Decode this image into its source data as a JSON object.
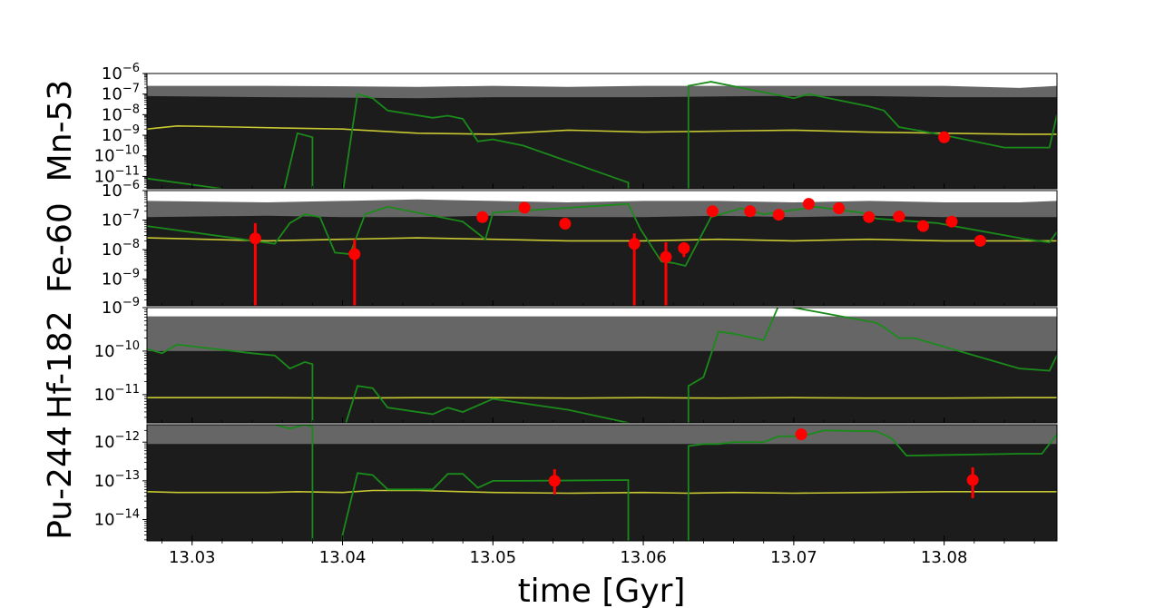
{
  "chart_data": {
    "type": "line",
    "xlabel": "time [Gyr]",
    "xlim": [
      13.027,
      13.0875
    ],
    "x_ticks": [
      "13.03",
      "13.04",
      "13.05",
      "13.06",
      "13.07",
      "13.08"
    ],
    "colors": {
      "band_outer": "#666666",
      "band_inner": "#1c1c1c",
      "median": "#c8c832",
      "model": "#1a8a1a",
      "measurement": "#ff0000"
    },
    "panels": [
      {
        "ylabel": "Mn-53",
        "log_ylim": [
          -11.6,
          -6
        ],
        "y_ticks": [
          -11,
          -10,
          -9,
          -8,
          -7,
          -6
        ],
        "band_outer": {
          "x": [
            13.027,
            13.035,
            13.045,
            13.05,
            13.055,
            13.06,
            13.0675,
            13.075,
            13.08,
            13.085,
            13.0875
          ],
          "lower": [
            -12,
            -12,
            -12,
            -12,
            -12,
            -12,
            -12,
            -12,
            -12,
            -12,
            -12
          ],
          "upper": [
            -6.6,
            -6.6,
            -6.65,
            -6.6,
            -6.65,
            -6.6,
            -6.6,
            -6.6,
            -6.6,
            -6.7,
            -6.6
          ]
        },
        "band_inner": {
          "x": [
            13.027,
            13.035,
            13.045,
            13.05,
            13.055,
            13.06,
            13.0675,
            13.075,
            13.08,
            13.085,
            13.0875
          ],
          "lower": [
            -12,
            -12,
            -12,
            -12,
            -12,
            -12,
            -12,
            -12,
            -12,
            -12,
            -12
          ],
          "upper": [
            -7.1,
            -7.15,
            -7.2,
            -7.15,
            -7.15,
            -7.15,
            -7.1,
            -7.1,
            -7.15,
            -7.15,
            -7.15
          ]
        },
        "median": {
          "x": [
            13.027,
            13.029,
            13.033,
            13.036,
            13.04,
            13.045,
            13.05,
            13.055,
            13.06,
            13.065,
            13.07,
            13.075,
            13.08,
            13.085,
            13.0875
          ],
          "y": [
            -8.7,
            -8.55,
            -8.6,
            -8.65,
            -8.7,
            -8.9,
            -8.95,
            -8.75,
            -8.85,
            -8.8,
            -8.75,
            -8.85,
            -8.9,
            -8.95,
            -8.95
          ]
        },
        "model": [
          {
            "x": [
              13.027,
              13.036,
              13.037,
              13.038,
              13.038
            ],
            "y": [
              -11.1,
              -12.0,
              -8.9,
              -9.1,
              -12.0
            ]
          },
          {
            "x": [
              13.04,
              13.041,
              13.042,
              13.043,
              13.046,
              13.047,
              13.048,
              13.049,
              13.05,
              13.052,
              13.059,
              13.059
            ],
            "y": [
              -11.9,
              -7.0,
              -7.2,
              -7.8,
              -8.15,
              -8.05,
              -8.2,
              -9.3,
              -9.2,
              -9.5,
              -11.3,
              -12.0
            ]
          },
          {
            "x": [
              13.063,
              13.063,
              13.0645,
              13.07,
              13.071,
              13.075,
              13.076,
              13.077,
              13.08,
              13.084,
              13.087,
              13.0875
            ],
            "y": [
              -12.0,
              -6.6,
              -6.4,
              -7.2,
              -7.0,
              -7.6,
              -7.8,
              -8.6,
              -9.0,
              -9.6,
              -9.6,
              -8.0
            ]
          }
        ],
        "measurements": [
          {
            "x": 13.08,
            "y": -9.1
          }
        ]
      },
      {
        "ylabel": "Fe-60",
        "log_ylim": [
          -9.9,
          -6
        ],
        "y_ticks": [
          -9,
          -8,
          -7,
          -6
        ],
        "band_outer": {
          "x": [
            13.027,
            13.035,
            13.04,
            13.045,
            13.05,
            13.055,
            13.06,
            13.065,
            13.07,
            13.075,
            13.08,
            13.085,
            13.0875
          ],
          "lower": [
            -10.1,
            -10.1,
            -10.0,
            -9.65,
            -9.8,
            -9.9,
            -10.1,
            -9.95,
            -9.9,
            -9.85,
            -9.9,
            -9.85,
            -9.9
          ],
          "upper": [
            -6.35,
            -6.4,
            -6.35,
            -6.3,
            -6.35,
            -6.4,
            -6.35,
            -6.35,
            -6.4,
            -6.35,
            -6.4,
            -6.4,
            -6.35
          ]
        },
        "band_inner": {
          "x": [
            13.027,
            13.035,
            13.04,
            13.045,
            13.05,
            13.055,
            13.06,
            13.065,
            13.07,
            13.075,
            13.08,
            13.085,
            13.0875
          ],
          "lower": [
            -10.1,
            -10.1,
            -10.1,
            -10.1,
            -10.1,
            -10.1,
            -10.1,
            -10.1,
            -10.1,
            -10.1,
            -10.1,
            -10.1,
            -10.1
          ],
          "upper": [
            -6.9,
            -6.85,
            -6.9,
            -6.9,
            -6.85,
            -6.9,
            -6.9,
            -6.85,
            -6.9,
            -6.85,
            -6.9,
            -6.9,
            -6.9
          ]
        },
        "median": {
          "x": [
            13.027,
            13.035,
            13.04,
            13.045,
            13.05,
            13.055,
            13.06,
            13.065,
            13.07,
            13.075,
            13.08,
            13.085,
            13.0875
          ],
          "y": [
            -7.6,
            -7.7,
            -7.65,
            -7.6,
            -7.65,
            -7.7,
            -7.7,
            -7.65,
            -7.7,
            -7.65,
            -7.7,
            -7.7,
            -7.7
          ]
        },
        "model": [
          {
            "x": [
              13.027,
              13.0355,
              13.0365,
              13.0375,
              13.0385,
              13.0395,
              13.0405,
              13.0415,
              13.043,
              13.048,
              13.0495,
              13.05,
              13.059,
              13.0598,
              13.0612,
              13.062,
              13.0628,
              13.0645,
              13.0665,
              13.068,
              13.0715,
              13.0745,
              13.0755,
              13.0795,
              13.0855,
              13.087,
              13.0875
            ],
            "y": [
              -7.2,
              -7.8,
              -7.1,
              -6.8,
              -6.9,
              -8.1,
              -8.15,
              -6.8,
              -6.55,
              -7.05,
              -7.65,
              -6.75,
              -6.45,
              -7.3,
              -8.4,
              -8.45,
              -8.55,
              -6.9,
              -6.6,
              -6.8,
              -6.55,
              -6.75,
              -6.95,
              -7.1,
              -7.65,
              -7.75,
              -7.4
            ]
          }
        ],
        "measurements": [
          {
            "x": 13.0342,
            "y": -7.62,
            "err_low": -10.1,
            "err_high": -7.1
          },
          {
            "x": 13.0408,
            "y": -8.15,
            "err_low": -10.1,
            "err_high": -7.65
          },
          {
            "x": 13.0493,
            "y": -6.9,
            "err_low": -7.05,
            "err_high": -6.8
          },
          {
            "x": 13.0521,
            "y": -6.58
          },
          {
            "x": 13.0548,
            "y": -7.12
          },
          {
            "x": 13.0594,
            "y": -7.8,
            "err_low": -10.1,
            "err_high": -7.45
          },
          {
            "x": 13.0615,
            "y": -8.25,
            "err_low": -10.1,
            "err_high": -7.75
          },
          {
            "x": 13.0627,
            "y": -7.95,
            "err_low": -8.25,
            "err_high": -7.75
          },
          {
            "x": 13.0646,
            "y": -6.7
          },
          {
            "x": 13.0671,
            "y": -6.7
          },
          {
            "x": 13.069,
            "y": -6.82
          },
          {
            "x": 13.071,
            "y": -6.45
          },
          {
            "x": 13.073,
            "y": -6.6
          },
          {
            "x": 13.075,
            "y": -6.9
          },
          {
            "x": 13.077,
            "y": -6.88
          },
          {
            "x": 13.0786,
            "y": -7.2
          },
          {
            "x": 13.0805,
            "y": -7.05
          },
          {
            "x": 13.0824,
            "y": -7.7
          }
        ]
      },
      {
        "ylabel": "Hf-182",
        "log_ylim": [
          -11.65,
          -9
        ],
        "y_ticks": [
          -11,
          -10,
          -9
        ],
        "band_outer": {
          "x": [
            13.027,
            13.035,
            13.045,
            13.05,
            13.055,
            13.06,
            13.065,
            13.07,
            13.075,
            13.08,
            13.085,
            13.0875
          ],
          "lower": [
            -12,
            -12,
            -12,
            -12,
            -12,
            -12,
            -12,
            -12,
            -12,
            -12,
            -12,
            -12
          ],
          "upper": [
            -9.2,
            -9.2,
            -9.2,
            -9.2,
            -9.2,
            -9.2,
            -9.2,
            -9.2,
            -9.2,
            -9.2,
            -9.2,
            -9.2
          ]
        },
        "band_inner": {
          "x": [
            13.027,
            13.035,
            13.045,
            13.05,
            13.055,
            13.06,
            13.065,
            13.07,
            13.075,
            13.08,
            13.085,
            13.0875
          ],
          "lower": [
            -12,
            -12,
            -12,
            -12,
            -12,
            -12,
            -12,
            -12,
            -12,
            -12,
            -12,
            -12
          ],
          "upper": [
            -10.0,
            -10.0,
            -10.0,
            -10.0,
            -10.0,
            -10.0,
            -10.0,
            -10.0,
            -10.0,
            -10.0,
            -10.0,
            -10.0
          ]
        },
        "median": {
          "x": [
            13.027,
            13.035,
            13.04,
            13.045,
            13.05,
            13.055,
            13.06,
            13.065,
            13.07,
            13.075,
            13.08,
            13.085,
            13.0875
          ],
          "y": [
            -11.07,
            -11.07,
            -11.08,
            -11.07,
            -11.07,
            -11.08,
            -11.07,
            -11.08,
            -11.07,
            -11.08,
            -11.08,
            -11.07,
            -11.07
          ]
        },
        "model": [
          {
            "x": [
              13.027,
              13.028,
              13.029,
              13.034,
              13.0355,
              13.0365,
              13.0375,
              13.038,
              13.038
            ],
            "y": [
              -9.95,
              -10.05,
              -9.85,
              -10.05,
              -10.1,
              -10.4,
              -10.25,
              -10.3,
              -12.0
            ]
          },
          {
            "x": [
              13.04,
              13.041,
              13.042,
              13.043,
              13.046,
              13.047,
              13.048,
              13.05,
              13.055,
              13.059,
              13.059
            ],
            "y": [
              -11.9,
              -10.8,
              -10.85,
              -11.3,
              -11.45,
              -11.3,
              -11.4,
              -11.1,
              -11.35,
              -11.65,
              -12.0
            ]
          },
          {
            "x": [
              13.063,
              13.063,
              13.064,
              13.065,
              13.066,
              13.068,
              13.069,
              13.07,
              13.0755,
              13.076,
              13.077,
              13.078,
              13.085,
              13.087,
              13.0875
            ],
            "y": [
              -12.0,
              -10.8,
              -10.6,
              -9.55,
              -9.6,
              -9.75,
              -8.95,
              -9.0,
              -9.35,
              -9.45,
              -9.7,
              -9.7,
              -10.4,
              -10.45,
              -10.1
            ]
          }
        ],
        "measurements": []
      },
      {
        "ylabel": "Pu-244",
        "log_ylim": [
          -14.55,
          -11.55
        ],
        "y_ticks": [
          -14,
          -13,
          -12
        ],
        "band_outer": {
          "x": [
            13.027,
            13.045,
            13.06,
            13.075,
            13.0875
          ],
          "lower": [
            -15,
            -15,
            -15,
            -15,
            -15
          ],
          "upper": [
            -11.55,
            -11.55,
            -11.55,
            -11.55,
            -11.55
          ]
        },
        "band_inner": {
          "x": [
            13.027,
            13.035,
            13.045,
            13.05,
            13.055,
            13.06,
            13.065,
            13.07,
            13.075,
            13.08,
            13.085,
            13.0875
          ],
          "lower": [
            -15,
            -15,
            -15,
            -15,
            -15,
            -15,
            -15,
            -15,
            -15,
            -15,
            -15,
            -15
          ],
          "upper": [
            -12.05,
            -12.05,
            -12.05,
            -12.05,
            -12.05,
            -12.05,
            -12.05,
            -12.05,
            -12.05,
            -12.05,
            -12.05,
            -12.05
          ]
        },
        "median": {
          "x": [
            13.027,
            13.029,
            13.032,
            13.035,
            13.037,
            13.04,
            13.042,
            13.045,
            13.048,
            13.05,
            13.055,
            13.06,
            13.063,
            13.066,
            13.07,
            13.075,
            13.08,
            13.085,
            13.0875
          ],
          "y": [
            -13.28,
            -13.3,
            -13.3,
            -13.3,
            -13.28,
            -13.3,
            -13.25,
            -13.25,
            -13.28,
            -13.3,
            -13.32,
            -13.3,
            -13.32,
            -13.3,
            -13.32,
            -13.3,
            -13.28,
            -13.28,
            -13.28
          ]
        },
        "model": [
          {
            "x": [
              13.0355,
              13.0365,
              13.0375,
              13.038,
              13.038
            ],
            "y": [
              -11.55,
              -11.65,
              -11.55,
              -11.6,
              -15.0
            ]
          },
          {
            "x": [
              13.04,
              13.04,
              13.041,
              13.042,
              13.043,
              13.046,
              13.047,
              13.048,
              13.049,
              13.05,
              13.052,
              13.059,
              13.059
            ],
            "y": [
              -15.0,
              -14.4,
              -12.8,
              -12.85,
              -13.22,
              -13.22,
              -12.82,
              -12.82,
              -13.18,
              -13.0,
              -13.0,
              -12.98,
              -15.0
            ]
          },
          {
            "x": [
              13.063,
              13.063,
              13.064,
              13.065,
              13.066,
              13.068,
              13.069,
              13.0705,
              13.072,
              13.0755,
              13.0765,
              13.0775,
              13.085,
              13.0865,
              13.0875
            ],
            "y": [
              -15.0,
              -12.1,
              -12.05,
              -12.05,
              -12.0,
              -12.0,
              -11.85,
              -11.85,
              -11.7,
              -11.72,
              -11.9,
              -12.35,
              -12.3,
              -12.3,
              -11.8
            ]
          }
        ],
        "measurements": [
          {
            "x": 13.0541,
            "y": -13.0,
            "err_low": -13.35,
            "err_high": -12.7
          },
          {
            "x": 13.0705,
            "y": -11.8
          },
          {
            "x": 13.0819,
            "y": -12.98,
            "err_low": -13.45,
            "err_high": -12.65
          }
        ]
      }
    ]
  }
}
